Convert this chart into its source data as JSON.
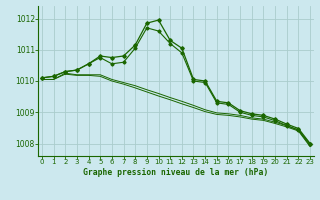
{
  "title": "Graphe pression niveau de la mer (hPa)",
  "background_color": "#cce8ee",
  "grid_color": "#aacccc",
  "line_color": "#1a6600",
  "x_ticks": [
    0,
    1,
    2,
    3,
    4,
    5,
    6,
    7,
    8,
    9,
    10,
    11,
    12,
    13,
    14,
    15,
    16,
    17,
    18,
    19,
    20,
    21,
    22,
    23
  ],
  "y_ticks": [
    1008,
    1009,
    1010,
    1011,
    1012
  ],
  "ylim": [
    1007.6,
    1012.4
  ],
  "xlim": [
    -0.3,
    23.3
  ],
  "series_main": [
    1010.1,
    1010.15,
    1010.3,
    1010.35,
    1010.55,
    1010.8,
    1010.75,
    1010.8,
    1011.15,
    1011.85,
    1011.95,
    1011.3,
    1011.05,
    1010.05,
    1010.0,
    1009.35,
    1009.3,
    1009.05,
    1008.95,
    1008.9,
    1008.78,
    1008.62,
    1008.48,
    1008.0
  ],
  "series_second": [
    1010.1,
    1010.15,
    1010.3,
    1010.35,
    1010.55,
    1010.75,
    1010.55,
    1010.6,
    1011.05,
    1011.7,
    1011.6,
    1011.2,
    1010.9,
    1010.0,
    1009.95,
    1009.3,
    1009.25,
    1009.0,
    1008.9,
    1008.85,
    1008.73,
    1008.57,
    1008.43,
    1007.98
  ],
  "series_flat1": [
    1010.05,
    1010.05,
    1010.25,
    1010.2,
    1010.2,
    1010.2,
    1010.05,
    1009.95,
    1009.85,
    1009.72,
    1009.6,
    1009.47,
    1009.35,
    1009.22,
    1009.08,
    1008.98,
    1008.95,
    1008.9,
    1008.82,
    1008.78,
    1008.68,
    1008.57,
    1008.43,
    1007.93
  ],
  "series_flat2": [
    1010.05,
    1010.05,
    1010.22,
    1010.18,
    1010.18,
    1010.15,
    1010.0,
    1009.9,
    1009.78,
    1009.65,
    1009.52,
    1009.4,
    1009.27,
    1009.15,
    1009.02,
    1008.93,
    1008.9,
    1008.85,
    1008.78,
    1008.74,
    1008.64,
    1008.53,
    1008.4,
    1007.9
  ]
}
